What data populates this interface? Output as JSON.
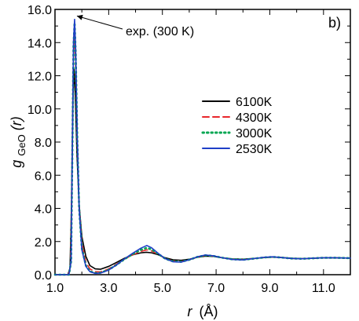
{
  "chart_data": {
    "type": "line",
    "panel_label": "b)",
    "xlabel": "r (Å)",
    "xlabel_var": "r",
    "xlabel_unit": "(Å)",
    "ylabel": "g_GeO(r)",
    "ylabel_main": "g",
    "ylabel_sub": "GeO",
    "ylabel_arg": "(r)",
    "xlim": [
      1.0,
      12.0
    ],
    "ylim": [
      0.0,
      16.0
    ],
    "x_ticks": [
      1.0,
      3.0,
      5.0,
      7.0,
      9.0,
      11.0
    ],
    "x_tick_labels": [
      "1.0",
      "3.0",
      "5.0",
      "7.0",
      "9.0",
      "11.0"
    ],
    "y_ticks": [
      0.0,
      2.0,
      4.0,
      6.0,
      8.0,
      10.0,
      12.0,
      14.0,
      16.0
    ],
    "y_tick_labels": [
      "0.0",
      "2.0",
      "4.0",
      "6.0",
      "8.0",
      "10.0",
      "12.0",
      "14.0",
      "16.0"
    ],
    "grid": false,
    "legend_position": "right",
    "annotation": {
      "text": "exp. (300 K)",
      "x": 1.73,
      "y": 15.7
    },
    "series": [
      {
        "name": "6100K",
        "color": "#000000",
        "dash": "solid",
        "points": [
          [
            1.0,
            0
          ],
          [
            1.48,
            0
          ],
          [
            1.56,
            0.4
          ],
          [
            1.62,
            4.5
          ],
          [
            1.67,
            10.5
          ],
          [
            1.71,
            12.4
          ],
          [
            1.75,
            11.2
          ],
          [
            1.82,
            7.2
          ],
          [
            1.9,
            4.2
          ],
          [
            2.0,
            2.3
          ],
          [
            2.15,
            1.1
          ],
          [
            2.3,
            0.55
          ],
          [
            2.5,
            0.35
          ],
          [
            2.7,
            0.33
          ],
          [
            3.0,
            0.5
          ],
          [
            3.3,
            0.75
          ],
          [
            3.6,
            1.0
          ],
          [
            3.9,
            1.2
          ],
          [
            4.2,
            1.32
          ],
          [
            4.4,
            1.35
          ],
          [
            4.6,
            1.32
          ],
          [
            4.85,
            1.2
          ],
          [
            5.1,
            1.02
          ],
          [
            5.4,
            0.9
          ],
          [
            5.7,
            0.87
          ],
          [
            6.0,
            0.93
          ],
          [
            6.3,
            1.05
          ],
          [
            6.6,
            1.12
          ],
          [
            6.9,
            1.1
          ],
          [
            7.2,
            1.03
          ],
          [
            7.6,
            0.95
          ],
          [
            8.0,
            0.93
          ],
          [
            8.4,
            0.98
          ],
          [
            8.8,
            1.03
          ],
          [
            9.1,
            1.06
          ],
          [
            9.4,
            1.04
          ],
          [
            9.8,
            0.99
          ],
          [
            10.2,
            0.97
          ],
          [
            10.6,
            0.99
          ],
          [
            11.0,
            1.02
          ],
          [
            11.4,
            1.02
          ],
          [
            12.0,
            1.0
          ]
        ]
      },
      {
        "name": "4300K",
        "color": "#e8262b",
        "dash": "dashed",
        "points": [
          [
            1.0,
            0
          ],
          [
            1.5,
            0
          ],
          [
            1.58,
            0.6
          ],
          [
            1.63,
            6.5
          ],
          [
            1.68,
            12.5
          ],
          [
            1.72,
            14.6
          ],
          [
            1.76,
            13.1
          ],
          [
            1.82,
            8.5
          ],
          [
            1.9,
            4.2
          ],
          [
            2.0,
            1.9
          ],
          [
            2.15,
            0.75
          ],
          [
            2.3,
            0.35
          ],
          [
            2.5,
            0.18
          ],
          [
            2.7,
            0.17
          ],
          [
            3.0,
            0.35
          ],
          [
            3.3,
            0.65
          ],
          [
            3.6,
            0.95
          ],
          [
            3.9,
            1.2
          ],
          [
            4.2,
            1.4
          ],
          [
            4.42,
            1.5
          ],
          [
            4.6,
            1.43
          ],
          [
            4.85,
            1.22
          ],
          [
            5.1,
            0.98
          ],
          [
            5.4,
            0.82
          ],
          [
            5.7,
            0.8
          ],
          [
            6.0,
            0.9
          ],
          [
            6.3,
            1.06
          ],
          [
            6.6,
            1.16
          ],
          [
            6.9,
            1.12
          ],
          [
            7.2,
            1.03
          ],
          [
            7.6,
            0.93
          ],
          [
            8.0,
            0.91
          ],
          [
            8.4,
            0.97
          ],
          [
            8.8,
            1.04
          ],
          [
            9.1,
            1.07
          ],
          [
            9.4,
            1.04
          ],
          [
            9.8,
            0.98
          ],
          [
            10.2,
            0.96
          ],
          [
            10.6,
            0.99
          ],
          [
            11.0,
            1.02
          ],
          [
            11.4,
            1.02
          ],
          [
            12.0,
            1.0
          ]
        ]
      },
      {
        "name": "3000K",
        "color": "#00a651",
        "dash": "dotted",
        "points": [
          [
            1.0,
            0
          ],
          [
            1.52,
            0
          ],
          [
            1.6,
            0.8
          ],
          [
            1.65,
            8.0
          ],
          [
            1.69,
            13.8
          ],
          [
            1.73,
            15.2
          ],
          [
            1.77,
            13.4
          ],
          [
            1.83,
            8.2
          ],
          [
            1.9,
            4.0
          ],
          [
            2.0,
            1.6
          ],
          [
            2.15,
            0.55
          ],
          [
            2.3,
            0.2
          ],
          [
            2.5,
            0.1
          ],
          [
            2.7,
            0.12
          ],
          [
            3.0,
            0.3
          ],
          [
            3.3,
            0.6
          ],
          [
            3.6,
            0.95
          ],
          [
            3.9,
            1.25
          ],
          [
            4.2,
            1.5
          ],
          [
            4.42,
            1.62
          ],
          [
            4.6,
            1.52
          ],
          [
            4.85,
            1.25
          ],
          [
            5.1,
            0.97
          ],
          [
            5.4,
            0.8
          ],
          [
            5.7,
            0.78
          ],
          [
            6.0,
            0.9
          ],
          [
            6.3,
            1.07
          ],
          [
            6.6,
            1.17
          ],
          [
            6.9,
            1.13
          ],
          [
            7.2,
            1.03
          ],
          [
            7.6,
            0.93
          ],
          [
            8.0,
            0.9
          ],
          [
            8.4,
            0.97
          ],
          [
            8.8,
            1.04
          ],
          [
            9.1,
            1.07
          ],
          [
            9.4,
            1.04
          ],
          [
            9.8,
            0.98
          ],
          [
            10.2,
            0.96
          ],
          [
            10.6,
            0.99
          ],
          [
            11.0,
            1.02
          ],
          [
            11.4,
            1.02
          ],
          [
            12.0,
            1.0
          ]
        ]
      },
      {
        "name": "2530K",
        "color": "#1f3fc7",
        "dash": "solid",
        "points": [
          [
            1.0,
            0
          ],
          [
            1.52,
            0
          ],
          [
            1.6,
            0.8
          ],
          [
            1.65,
            8.3
          ],
          [
            1.69,
            14.1
          ],
          [
            1.73,
            15.4
          ],
          [
            1.77,
            13.6
          ],
          [
            1.83,
            8.3
          ],
          [
            1.9,
            4.0
          ],
          [
            2.0,
            1.5
          ],
          [
            2.15,
            0.5
          ],
          [
            2.3,
            0.18
          ],
          [
            2.5,
            0.08
          ],
          [
            2.7,
            0.1
          ],
          [
            3.0,
            0.28
          ],
          [
            3.3,
            0.6
          ],
          [
            3.6,
            0.97
          ],
          [
            3.9,
            1.3
          ],
          [
            4.2,
            1.6
          ],
          [
            4.42,
            1.76
          ],
          [
            4.6,
            1.62
          ],
          [
            4.85,
            1.28
          ],
          [
            5.1,
            0.97
          ],
          [
            5.4,
            0.78
          ],
          [
            5.7,
            0.76
          ],
          [
            6.0,
            0.9
          ],
          [
            6.3,
            1.08
          ],
          [
            6.6,
            1.19
          ],
          [
            6.9,
            1.14
          ],
          [
            7.2,
            1.03
          ],
          [
            7.6,
            0.92
          ],
          [
            8.0,
            0.89
          ],
          [
            8.4,
            0.97
          ],
          [
            8.8,
            1.05
          ],
          [
            9.1,
            1.08
          ],
          [
            9.4,
            1.04
          ],
          [
            9.8,
            0.98
          ],
          [
            10.2,
            0.96
          ],
          [
            10.6,
            0.99
          ],
          [
            11.0,
            1.02
          ],
          [
            11.4,
            1.02
          ],
          [
            12.0,
            1.0
          ]
        ]
      }
    ]
  }
}
